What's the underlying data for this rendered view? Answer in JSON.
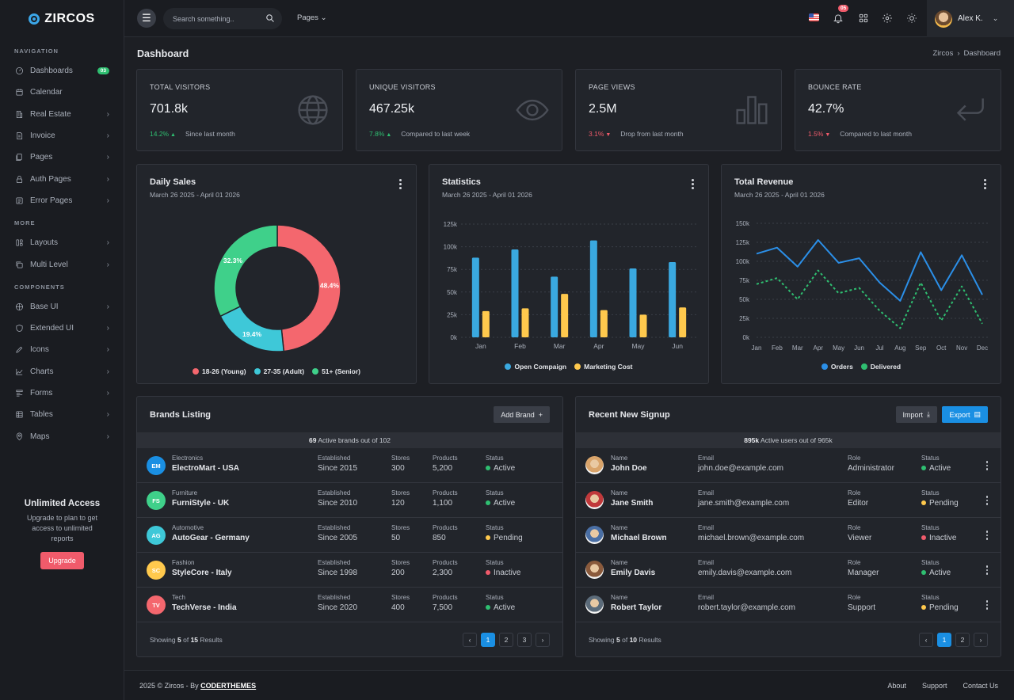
{
  "app": {
    "brand": "ZIRCOS"
  },
  "sidebar": {
    "sections": [
      {
        "title": "NAVIGATION",
        "items": [
          {
            "label": "Dashboards",
            "icon": "dashboard-icon",
            "badge": "03"
          },
          {
            "label": "Calendar",
            "icon": "calendar-icon"
          },
          {
            "label": "Real Estate",
            "icon": "building-icon",
            "chevron": true
          },
          {
            "label": "Invoice",
            "icon": "invoice-icon",
            "chevron": true
          },
          {
            "label": "Pages",
            "icon": "pages-icon",
            "chevron": true
          },
          {
            "label": "Auth Pages",
            "icon": "lock-icon",
            "chevron": true
          },
          {
            "label": "Error Pages",
            "icon": "error-icon",
            "chevron": true
          }
        ]
      },
      {
        "title": "MORE",
        "items": [
          {
            "label": "Layouts",
            "icon": "layout-icon",
            "chevron": true
          },
          {
            "label": "Multi Level",
            "icon": "layers-icon",
            "chevron": true
          }
        ]
      },
      {
        "title": "COMPONENTS",
        "items": [
          {
            "label": "Base UI",
            "icon": "base-ui-icon",
            "chevron": true
          },
          {
            "label": "Extended UI",
            "icon": "shield-icon",
            "chevron": true
          },
          {
            "label": "Icons",
            "icon": "icons-icon",
            "chevron": true
          },
          {
            "label": "Charts",
            "icon": "chart-icon",
            "chevron": true
          },
          {
            "label": "Forms",
            "icon": "form-icon",
            "chevron": true
          },
          {
            "label": "Tables",
            "icon": "table-icon",
            "chevron": true
          },
          {
            "label": "Maps",
            "icon": "map-pin-icon",
            "chevron": true
          }
        ]
      }
    ],
    "upgrade": {
      "title": "Unlimited Access",
      "text": "Upgrade to plan to get access to unlimited reports",
      "button": "Upgrade"
    }
  },
  "topbar": {
    "search_placeholder": "Search something..",
    "pages_label": "Pages",
    "notification_count": "05",
    "user_name": "Alex K."
  },
  "page": {
    "title": "Dashboard",
    "breadcrumb": [
      "Zircos",
      "Dashboard"
    ]
  },
  "stats": [
    {
      "label": "TOTAL VISITORS",
      "value": "701.8k",
      "change": "14.2%",
      "direction": "up",
      "note": "Since last month",
      "icon": "globe-icon"
    },
    {
      "label": "UNIQUE VISITORS",
      "value": "467.25k",
      "change": "7.8%",
      "direction": "up",
      "note": "Compared to last week",
      "icon": "eye-icon"
    },
    {
      "label": "PAGE VIEWS",
      "value": "2.5M",
      "change": "3.1%",
      "direction": "down",
      "note": "Drop from last month",
      "icon": "bar-chart-icon"
    },
    {
      "label": "BOUNCE RATE",
      "value": "42.7%",
      "change": "1.5%",
      "direction": "down",
      "note": "Compared to last month",
      "icon": "return-arrow-icon"
    }
  ],
  "charts": {
    "daily_sales": {
      "title": "Daily Sales",
      "subtitle": "March 26 2025 - April 01 2026"
    },
    "statistics": {
      "title": "Statistics",
      "subtitle": "March 26 2025 - April 01 2026"
    },
    "revenue": {
      "title": "Total Revenue",
      "subtitle": "March 26 2025 - April 01 2026"
    }
  },
  "chart_data": [
    {
      "type": "pie",
      "title": "Daily Sales",
      "labels": [
        "18-26 (Young)",
        "27-35 (Adult)",
        "51+ (Senior)"
      ],
      "values": [
        48.4,
        19.4,
        32.3
      ],
      "value_labels": [
        "48.4%",
        "19.4%",
        "32.3%"
      ],
      "colors": [
        "#f4676e",
        "#3ec8d8",
        "#3fd08a"
      ],
      "legend": "bottom"
    },
    {
      "type": "bar",
      "title": "Statistics",
      "categories": [
        "Jan",
        "Feb",
        "Mar",
        "Apr",
        "May",
        "Jun"
      ],
      "series": [
        {
          "name": "Open Compaign",
          "values": [
            88,
            97,
            67,
            107,
            76,
            83
          ],
          "color": "#3aa9e0"
        },
        {
          "name": "Marketing Cost",
          "values": [
            29,
            32,
            48,
            30,
            25,
            33
          ],
          "color": "#ffc94d"
        }
      ],
      "ylim": [
        0,
        125
      ],
      "yticks": [
        "0k",
        "25k",
        "50k",
        "75k",
        "100k",
        "125k"
      ],
      "grid": true,
      "legend": "bottom"
    },
    {
      "type": "line",
      "title": "Total Revenue",
      "categories": [
        "Jan",
        "Feb",
        "Mar",
        "Apr",
        "May",
        "Jun",
        "Jul",
        "Aug",
        "Sep",
        "Oct",
        "Nov",
        "Dec"
      ],
      "series": [
        {
          "name": "Orders",
          "values": [
            110,
            118,
            93,
            128,
            98,
            104,
            72,
            48,
            112,
            62,
            108,
            56
          ],
          "color": "#2b8fe8",
          "style": "solid"
        },
        {
          "name": "Delivered",
          "values": [
            70,
            78,
            50,
            88,
            58,
            65,
            35,
            12,
            72,
            22,
            67,
            18
          ],
          "color": "#2fbf71",
          "style": "dashed"
        }
      ],
      "ylim": [
        0,
        150
      ],
      "yticks": [
        "0k",
        "25k",
        "50k",
        "75k",
        "100k",
        "125k",
        "150k"
      ],
      "grid": true,
      "legend": "bottom"
    }
  ],
  "brands": {
    "title": "Brands Listing",
    "add_button": "Add Brand",
    "summary_count": "69",
    "summary_text": "Active brands out of 102",
    "columns": {
      "established": "Established",
      "stores": "Stores",
      "products": "Products",
      "status": "Status"
    },
    "rows": [
      {
        "initials": "EM",
        "color": "#1a8fe3",
        "category": "Electronics",
        "name": "ElectroMart - USA",
        "established": "Since 2015",
        "stores": "300",
        "products": "5,200",
        "status": "Active",
        "status_color": "#2fbf71"
      },
      {
        "initials": "FS",
        "color": "#3fd08a",
        "category": "Furniture",
        "name": "FurniStyle - UK",
        "established": "Since 2010",
        "stores": "120",
        "products": "1,100",
        "status": "Active",
        "status_color": "#2fbf71"
      },
      {
        "initials": "AG",
        "color": "#3ec8d8",
        "category": "Automotive",
        "name": "AutoGear - Germany",
        "established": "Since 2005",
        "stores": "50",
        "products": "850",
        "status": "Pending",
        "status_color": "#ffc94d"
      },
      {
        "initials": "SC",
        "color": "#ffc94d",
        "category": "Fashion",
        "name": "StyleCore - Italy",
        "established": "Since 1998",
        "stores": "200",
        "products": "2,300",
        "status": "Inactive",
        "status_color": "#f05b6b"
      },
      {
        "initials": "TV",
        "color": "#f4676e",
        "category": "Tech",
        "name": "TechVerse - India",
        "established": "Since 2020",
        "stores": "400",
        "products": "7,500",
        "status": "Active",
        "status_color": "#2fbf71"
      }
    ],
    "showing_prefix": "Showing",
    "showing_count": "5",
    "showing_of": "of",
    "showing_total": "15",
    "showing_suffix": "Results",
    "pages": [
      "1",
      "2",
      "3"
    ]
  },
  "signups": {
    "title": "Recent New Signup",
    "import_button": "Import",
    "export_button": "Export",
    "summary_count": "895k",
    "summary_text": "Active users out of 965k",
    "columns": {
      "name": "Name",
      "email": "Email",
      "role": "Role",
      "status": "Status"
    },
    "rows": [
      {
        "name": "John Doe",
        "email": "john.doe@example.com",
        "role": "Administrator",
        "status": "Active",
        "status_color": "#2fbf71",
        "avatar_color": "#d9a46b"
      },
      {
        "name": "Jane Smith",
        "email": "jane.smith@example.com",
        "role": "Editor",
        "status": "Pending",
        "status_color": "#ffc94d",
        "avatar_color": "#c0393b"
      },
      {
        "name": "Michael Brown",
        "email": "michael.brown@example.com",
        "role": "Viewer",
        "status": "Inactive",
        "status_color": "#f05b6b",
        "avatar_color": "#4a6fa5"
      },
      {
        "name": "Emily Davis",
        "email": "emily.davis@example.com",
        "role": "Manager",
        "status": "Active",
        "status_color": "#2fbf71",
        "avatar_color": "#8a5a3c"
      },
      {
        "name": "Robert Taylor",
        "email": "robert.taylor@example.com",
        "role": "Support",
        "status": "Pending",
        "status_color": "#ffc94d",
        "avatar_color": "#5b6b7a"
      }
    ],
    "showing_prefix": "Showing",
    "showing_count": "5",
    "showing_of": "of",
    "showing_total": "10",
    "showing_suffix": "Results",
    "pages": [
      "1",
      "2"
    ]
  },
  "footer": {
    "copyright": "2025 © Zircos - By",
    "author": "CODERTHEMES",
    "links": [
      "About",
      "Support",
      "Contact Us"
    ]
  }
}
